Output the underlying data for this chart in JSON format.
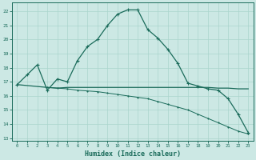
{
  "xlabel": "Humidex (Indice chaleur)",
  "bg_color": "#cce8e4",
  "grid_color": "#aad4cc",
  "line_color": "#1a6b5a",
  "x_ticks": [
    0,
    1,
    2,
    3,
    4,
    5,
    6,
    7,
    8,
    9,
    10,
    11,
    12,
    13,
    14,
    15,
    16,
    17,
    18,
    19,
    20,
    21,
    22,
    23
  ],
  "y_ticks": [
    13,
    14,
    15,
    16,
    17,
    18,
    19,
    20,
    21,
    22
  ],
  "xlim": [
    -0.5,
    23.5
  ],
  "ylim": [
    12.8,
    22.6
  ],
  "curve1_x": [
    0,
    1,
    2,
    3,
    4,
    5,
    6,
    7,
    8,
    9,
    10,
    11,
    12,
    13,
    14,
    15,
    16,
    17,
    18,
    19,
    20,
    21,
    22,
    23
  ],
  "curve1_y": [
    16.8,
    17.5,
    18.2,
    16.4,
    17.2,
    17.0,
    18.5,
    19.5,
    20.0,
    21.0,
    21.8,
    22.1,
    22.1,
    20.7,
    20.1,
    19.3,
    18.3,
    16.9,
    16.7,
    16.5,
    16.4,
    15.8,
    14.7,
    13.4
  ],
  "curve2_x": [
    0,
    3,
    4,
    5,
    19,
    20,
    21,
    22,
    23
  ],
  "curve2_y": [
    16.8,
    16.6,
    16.55,
    16.6,
    16.6,
    16.55,
    16.55,
    16.5,
    16.5
  ],
  "curve3_x": [
    3,
    4,
    5,
    6,
    7,
    8,
    9,
    10,
    11,
    12,
    13,
    14,
    15,
    16,
    17,
    18,
    19,
    20,
    21,
    22,
    23
  ],
  "curve3_y": [
    16.6,
    16.55,
    16.5,
    16.4,
    16.35,
    16.3,
    16.2,
    16.1,
    16.0,
    15.9,
    15.8,
    15.6,
    15.4,
    15.2,
    15.0,
    14.7,
    14.4,
    14.1,
    13.8,
    13.5,
    13.3
  ]
}
